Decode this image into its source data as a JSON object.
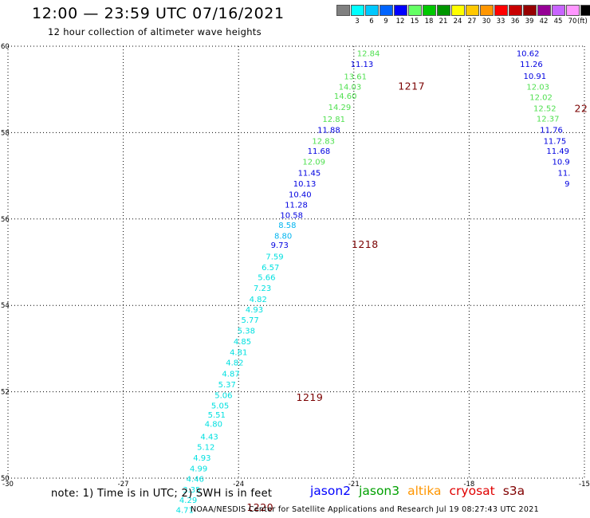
{
  "header": {
    "title": "12:00 — 23:59 UTC 07/16/2021",
    "subtitle": "12 hour collection of altimeter wave heights"
  },
  "legend": {
    "boxes": [
      {
        "label": "",
        "color": "#808080"
      },
      {
        "label": "3",
        "color": "#00ffff"
      },
      {
        "label": "6",
        "color": "#00c8ff"
      },
      {
        "label": "9",
        "color": "#0064ff"
      },
      {
        "label": "12",
        "color": "#0000ff"
      },
      {
        "label": "15",
        "color": "#64ff64"
      },
      {
        "label": "18",
        "color": "#00c800"
      },
      {
        "label": "21",
        "color": "#009600"
      },
      {
        "label": "24",
        "color": "#ffff00"
      },
      {
        "label": "27",
        "color": "#ffc800"
      },
      {
        "label": "30",
        "color": "#ff9600"
      },
      {
        "label": "33",
        "color": "#ff0000"
      },
      {
        "label": "36",
        "color": "#c80000"
      },
      {
        "label": "39",
        "color": "#960000"
      },
      {
        "label": "42",
        "color": "#960096"
      },
      {
        "label": "45",
        "color": "#c864ff"
      },
      {
        "label": "70",
        "color": "#ff96ff"
      },
      {
        "label": "",
        "color": "#000000"
      }
    ],
    "unit": "(ft)"
  },
  "map": {
    "lon_range": [
      -30,
      -15
    ],
    "lat_range": [
      50,
      60
    ],
    "lon_ticks": [
      "-30",
      "-27",
      "-24",
      "-21",
      "-18",
      "-15"
    ],
    "lat_ticks": [
      "50",
      "52",
      "54",
      "56",
      "58",
      "60"
    ],
    "colors": {
      "cyan": "#00e0e0",
      "skyblue": "#00b4f0",
      "blue": "#0000e0",
      "green": "#50e050",
      "darkred": "#7a0000"
    },
    "tracks": [
      {
        "name": "track-west",
        "points": [
          {
            "lat": 59.84,
            "lon": -20.62,
            "label": "12.84",
            "color": "green"
          },
          {
            "lat": 59.59,
            "lon": -20.79,
            "label": "11.13",
            "color": "blue"
          },
          {
            "lat": 59.31,
            "lon": -20.96,
            "label": "13.61",
            "color": "green"
          },
          {
            "lat": 59.07,
            "lon": -21.1,
            "label": "14.03",
            "color": "green"
          },
          {
            "lat": 58.86,
            "lon": -21.22,
            "label": "14.60",
            "color": "green"
          },
          {
            "lat": 58.6,
            "lon": -21.37,
            "label": "14.29",
            "color": "green"
          },
          {
            "lat": 58.32,
            "lon": -21.52,
            "label": "12.81",
            "color": "green"
          },
          {
            "lat": 58.07,
            "lon": -21.65,
            "label": "11.88",
            "color": "blue"
          },
          {
            "lat": 57.81,
            "lon": -21.79,
            "label": "12.83",
            "color": "green"
          },
          {
            "lat": 57.58,
            "lon": -21.91,
            "label": "11.68",
            "color": "blue"
          },
          {
            "lat": 57.33,
            "lon": -22.04,
            "label": "12.09",
            "color": "green"
          },
          {
            "lat": 57.08,
            "lon": -22.16,
            "label": "11.45",
            "color": "blue"
          },
          {
            "lat": 56.83,
            "lon": -22.28,
            "label": "10.13",
            "color": "blue"
          },
          {
            "lat": 56.58,
            "lon": -22.4,
            "label": "10.40",
            "color": "blue"
          },
          {
            "lat": 56.34,
            "lon": -22.5,
            "label": "11.28",
            "color": "blue"
          },
          {
            "lat": 56.1,
            "lon": -22.62,
            "label": "10.58",
            "color": "blue"
          },
          {
            "lat": 55.87,
            "lon": -22.73,
            "label": "8.58",
            "color": "skyblue"
          },
          {
            "lat": 55.62,
            "lon": -22.84,
            "label": "8.80",
            "color": "skyblue"
          },
          {
            "lat": 55.41,
            "lon": -22.93,
            "label": "9.73",
            "color": "blue"
          },
          {
            "lat": 55.14,
            "lon": -23.06,
            "label": "7.59",
            "color": "cyan"
          },
          {
            "lat": 54.89,
            "lon": -23.17,
            "label": "6.57",
            "color": "cyan"
          },
          {
            "lat": 54.66,
            "lon": -23.27,
            "label": "5.66",
            "color": "cyan"
          },
          {
            "lat": 54.41,
            "lon": -23.38,
            "label": "7.23",
            "color": "cyan"
          },
          {
            "lat": 54.15,
            "lon": -23.49,
            "label": "4.82",
            "color": "cyan"
          },
          {
            "lat": 53.91,
            "lon": -23.59,
            "label": "4.93",
            "color": "cyan"
          },
          {
            "lat": 53.67,
            "lon": -23.7,
            "label": "5.77",
            "color": "cyan"
          },
          {
            "lat": 53.42,
            "lon": -23.8,
            "label": "5.38",
            "color": "cyan"
          },
          {
            "lat": 53.17,
            "lon": -23.9,
            "label": "4.85",
            "color": "cyan"
          },
          {
            "lat": 52.92,
            "lon": -24.0,
            "label": "4.81",
            "color": "cyan"
          },
          {
            "lat": 52.68,
            "lon": -24.1,
            "label": "4.82",
            "color": "cyan"
          },
          {
            "lat": 52.43,
            "lon": -24.2,
            "label": "4.87",
            "color": "cyan"
          },
          {
            "lat": 52.18,
            "lon": -24.3,
            "label": "5.37",
            "color": "cyan"
          },
          {
            "lat": 51.93,
            "lon": -24.39,
            "label": "5.06",
            "color": "cyan"
          },
          {
            "lat": 51.69,
            "lon": -24.48,
            "label": "5.05",
            "color": "cyan"
          },
          {
            "lat": 51.48,
            "lon": -24.57,
            "label": "5.51",
            "color": "cyan"
          },
          {
            "lat": 51.26,
            "lon": -24.65,
            "label": "4.80",
            "color": "cyan"
          },
          {
            "lat": 50.97,
            "lon": -24.76,
            "label": "4.43",
            "color": "cyan"
          },
          {
            "lat": 50.73,
            "lon": -24.85,
            "label": "5.12",
            "color": "cyan"
          },
          {
            "lat": 50.48,
            "lon": -24.95,
            "label": "4.93",
            "color": "cyan"
          },
          {
            "lat": 50.23,
            "lon": -25.04,
            "label": "4.99",
            "color": "cyan"
          },
          {
            "lat": 49.99,
            "lon": -25.13,
            "label": "4.46",
            "color": "cyan"
          },
          {
            "lat": 49.74,
            "lon": -25.22,
            "label": "3.35",
            "color": "cyan"
          },
          {
            "lat": 49.5,
            "lon": -25.31,
            "label": "4.29",
            "color": "cyan"
          },
          {
            "lat": 49.27,
            "lon": -25.4,
            "label": "4.71",
            "color": "cyan"
          }
        ]
      },
      {
        "name": "track-east",
        "points": [
          {
            "lat": 59.84,
            "lon": -16.47,
            "label": "10.62",
            "color": "blue"
          },
          {
            "lat": 59.59,
            "lon": -16.38,
            "label": "11.26",
            "color": "blue"
          },
          {
            "lat": 59.32,
            "lon": -16.29,
            "label": "10.91",
            "color": "blue"
          },
          {
            "lat": 59.07,
            "lon": -16.21,
            "label": "12.03",
            "color": "green"
          },
          {
            "lat": 58.83,
            "lon": -16.13,
            "label": "12.02",
            "color": "green"
          },
          {
            "lat": 58.57,
            "lon": -16.03,
            "label": "12.52",
            "color": "green"
          },
          {
            "lat": 58.33,
            "lon": -15.95,
            "label": "12.37",
            "color": "green"
          },
          {
            "lat": 58.07,
            "lon": -15.86,
            "label": "11.76",
            "color": "blue"
          },
          {
            "lat": 57.81,
            "lon": -15.77,
            "label": "11.75",
            "color": "blue"
          },
          {
            "lat": 57.58,
            "lon": -15.69,
            "label": "11.49",
            "color": "blue"
          },
          {
            "lat": 57.33,
            "lon": -15.61,
            "label": "10.9",
            "color": "blue"
          },
          {
            "lat": 57.08,
            "lon": -15.53,
            "label": "11.",
            "color": "blue"
          },
          {
            "lat": 56.83,
            "lon": -15.45,
            "label": "9",
            "color": "blue"
          }
        ]
      }
    ],
    "time_labels": [
      {
        "lat": 59.07,
        "lon": -19.85,
        "label": "1217"
      },
      {
        "lat": 55.41,
        "lon": -21.06,
        "label": "1218"
      },
      {
        "lat": 51.86,
        "lon": -22.5,
        "label": "1219"
      },
      {
        "lat": 49.32,
        "lon": -23.79,
        "label": "1220"
      },
      {
        "lat": 58.55,
        "lon": -15.26,
        "label": "22"
      }
    ]
  },
  "footer": {
    "note": "note: 1) Time is in UTC; 2) SWH is in feet",
    "satellites": [
      {
        "label": "jason2",
        "color": "#0000ff"
      },
      {
        "label": "jason3",
        "color": "#00a000"
      },
      {
        "label": "altika",
        "color": "#ff9600"
      },
      {
        "label": "cryosat",
        "color": "#e00000"
      },
      {
        "label": "s3a",
        "color": "#800000"
      }
    ],
    "credit": "NOAA/NESDIS Center for Satellite Applications and Research    Jul 19 08:27:43 UTC 2021"
  }
}
